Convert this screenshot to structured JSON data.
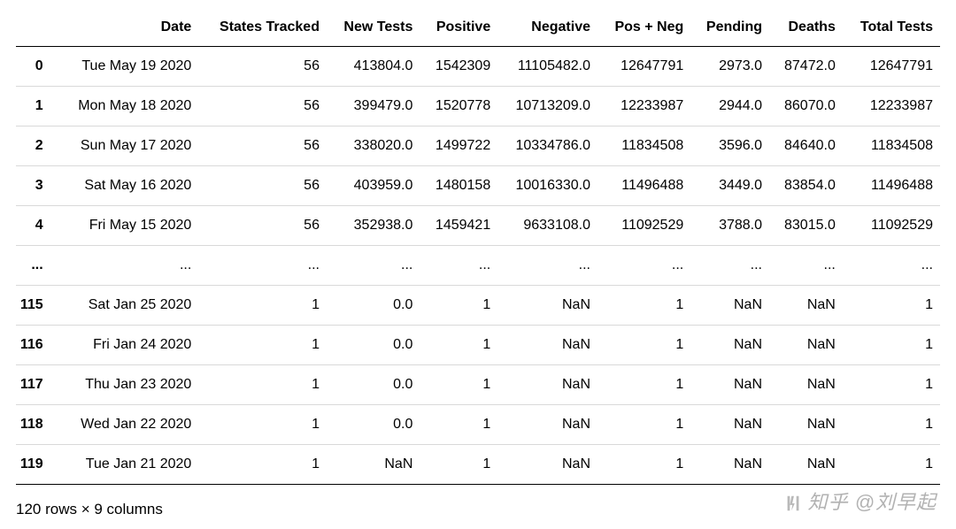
{
  "table": {
    "columns": [
      "Date",
      "States Tracked",
      "New Tests",
      "Positive",
      "Negative",
      "Pos + Neg",
      "Pending",
      "Deaths",
      "Total Tests"
    ],
    "rows": [
      {
        "index": "0",
        "cells": [
          "Tue May 19 2020",
          "56",
          "413804.0",
          "1542309",
          "11105482.0",
          "12647791",
          "2973.0",
          "87472.0",
          "12647791"
        ]
      },
      {
        "index": "1",
        "cells": [
          "Mon May 18 2020",
          "56",
          "399479.0",
          "1520778",
          "10713209.0",
          "12233987",
          "2944.0",
          "86070.0",
          "12233987"
        ]
      },
      {
        "index": "2",
        "cells": [
          "Sun May 17 2020",
          "56",
          "338020.0",
          "1499722",
          "10334786.0",
          "11834508",
          "3596.0",
          "84640.0",
          "11834508"
        ]
      },
      {
        "index": "3",
        "cells": [
          "Sat May 16 2020",
          "56",
          "403959.0",
          "1480158",
          "10016330.0",
          "11496488",
          "3449.0",
          "83854.0",
          "11496488"
        ]
      },
      {
        "index": "4",
        "cells": [
          "Fri May 15 2020",
          "56",
          "352938.0",
          "1459421",
          "9633108.0",
          "11092529",
          "3788.0",
          "83015.0",
          "11092529"
        ]
      },
      {
        "index": "...",
        "cells": [
          "...",
          "...",
          "...",
          "...",
          "...",
          "...",
          "...",
          "...",
          "..."
        ]
      },
      {
        "index": "115",
        "cells": [
          "Sat Jan 25 2020",
          "1",
          "0.0",
          "1",
          "NaN",
          "1",
          "NaN",
          "NaN",
          "1"
        ]
      },
      {
        "index": "116",
        "cells": [
          "Fri Jan 24 2020",
          "1",
          "0.0",
          "1",
          "NaN",
          "1",
          "NaN",
          "NaN",
          "1"
        ]
      },
      {
        "index": "117",
        "cells": [
          "Thu Jan 23 2020",
          "1",
          "0.0",
          "1",
          "NaN",
          "1",
          "NaN",
          "NaN",
          "1"
        ]
      },
      {
        "index": "118",
        "cells": [
          "Wed Jan 22 2020",
          "1",
          "0.0",
          "1",
          "NaN",
          "1",
          "NaN",
          "NaN",
          "1"
        ]
      },
      {
        "index": "119",
        "cells": [
          "Tue Jan 21 2020",
          "1",
          "NaN",
          "1",
          "NaN",
          "1",
          "NaN",
          "NaN",
          "1"
        ]
      }
    ],
    "summary": "120 rows × 9 columns",
    "header_fontsize": 16,
    "cell_fontsize": 16,
    "border_color": "#d9d9d9",
    "thick_border_color": "#000000",
    "background_color": "#ffffff",
    "text_color": "#000000"
  },
  "watermark": {
    "text": "知乎 @刘早起",
    "color": "rgba(102,102,102,0.5)"
  }
}
